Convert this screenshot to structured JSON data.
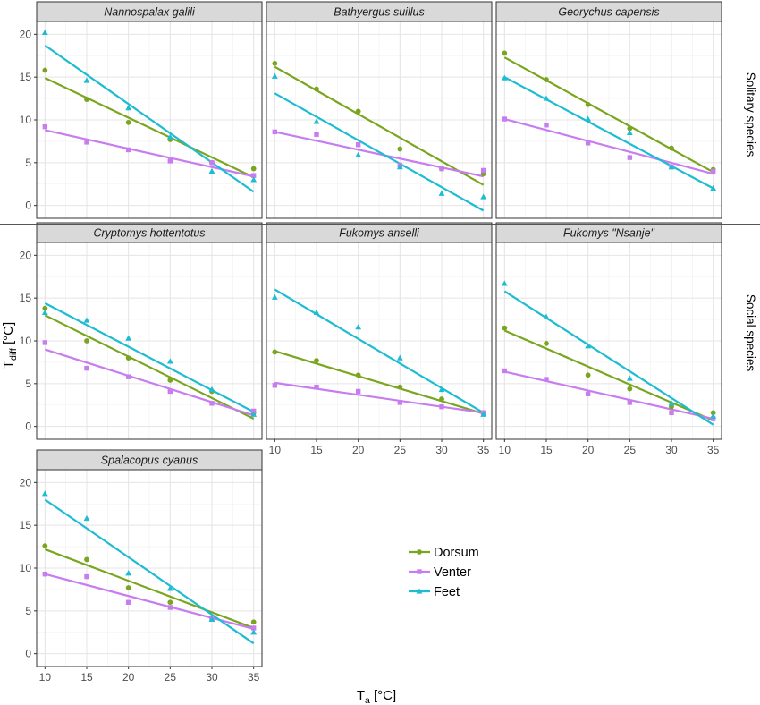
{
  "figure": {
    "x_title": "T",
    "x_title_sub": "a",
    "x_title_unit": " [°C]",
    "y_title": "T",
    "y_title_sub": "diff",
    "y_title_unit": " [°C]",
    "row_labels": [
      "Solitary species",
      "Social species"
    ],
    "legend": [
      {
        "label": "Dorsum",
        "color": "#7aa51e",
        "marker": "circle"
      },
      {
        "label": "Venter",
        "color": "#c77cf0",
        "marker": "square"
      },
      {
        "label": "Feet",
        "color": "#1cbcd2",
        "marker": "triangle"
      }
    ]
  },
  "chart_data": {
    "type": "scatter",
    "facet_layout": "3x3 grid, 7 panels",
    "trend": "linear regression line per series",
    "xlim": [
      9,
      36
    ],
    "ylim": [
      -1.5,
      21.5
    ],
    "x_ticks": [
      10,
      15,
      20,
      25,
      30,
      35
    ],
    "y_ticks": [
      0,
      5,
      10,
      15,
      20
    ],
    "x": [
      10,
      15,
      20,
      25,
      30,
      35
    ],
    "grid": true,
    "legend_position": "bottom-right",
    "panels": [
      {
        "title": "Nannospalax galili",
        "group": "Solitary species",
        "series": [
          {
            "name": "Dorsum",
            "points": [
              15.8,
              12.4,
              9.7,
              7.7,
              5.0,
              4.3
            ],
            "fit": [
              14.9,
              3.3
            ]
          },
          {
            "name": "Venter",
            "points": [
              9.2,
              7.4,
              6.5,
              5.2,
              5.0,
              3.5
            ],
            "fit": [
              8.8,
              3.4
            ]
          },
          {
            "name": "Feet",
            "points": [
              20.2,
              14.6,
              11.4,
              8.0,
              4.0,
              3.0
            ],
            "fit": [
              18.7,
              1.6
            ]
          }
        ]
      },
      {
        "title": "Bathyergus suillus",
        "group": "Solitary species",
        "series": [
          {
            "name": "Dorsum",
            "points": [
              16.6,
              13.6,
              11.0,
              6.6,
              4.3,
              3.7
            ],
            "fit": [
              16.2,
              2.4
            ]
          },
          {
            "name": "Venter",
            "points": [
              8.6,
              8.3,
              7.1,
              4.7,
              4.3,
              4.1
            ],
            "fit": [
              8.6,
              3.4
            ]
          },
          {
            "name": "Feet",
            "points": [
              15.1,
              9.8,
              5.9,
              4.5,
              1.4,
              1.0
            ],
            "fit": [
              13.1,
              -0.6
            ]
          }
        ]
      },
      {
        "title": "Georychus capensis",
        "group": "Solitary species",
        "series": [
          {
            "name": "Dorsum",
            "points": [
              17.8,
              14.7,
              11.8,
              9.0,
              6.7,
              4.2
            ],
            "fit": [
              17.3,
              3.9
            ]
          },
          {
            "name": "Venter",
            "points": [
              10.1,
              9.4,
              7.3,
              5.6,
              4.5,
              4.0
            ],
            "fit": [
              10.1,
              3.7
            ]
          },
          {
            "name": "Feet",
            "points": [
              14.9,
              12.5,
              10.1,
              8.5,
              4.5,
              2.0
            ],
            "fit": [
              15.0,
              2.0
            ]
          }
        ]
      },
      {
        "title": "Cryptomys hottentotus",
        "group": "Social species",
        "series": [
          {
            "name": "Dorsum",
            "points": [
              13.8,
              10.0,
              8.0,
              5.4,
              4.1,
              1.6
            ],
            "fit": [
              13.0,
              0.9
            ]
          },
          {
            "name": "Venter",
            "points": [
              9.8,
              6.8,
              5.8,
              4.1,
              2.7,
              1.8
            ],
            "fit": [
              9.0,
              1.3
            ]
          },
          {
            "name": "Feet",
            "points": [
              13.3,
              12.4,
              10.3,
              7.6,
              4.3,
              1.4
            ],
            "fit": [
              14.4,
              1.7
            ]
          }
        ]
      },
      {
        "title": "Fukomys anselli",
        "group": "Social species",
        "series": [
          {
            "name": "Dorsum",
            "points": [
              8.7,
              7.7,
              6.0,
              4.6,
              3.2,
              1.6
            ],
            "fit": [
              8.8,
              1.5
            ]
          },
          {
            "name": "Venter",
            "points": [
              4.8,
              4.6,
              4.1,
              2.8,
              2.3,
              1.6
            ],
            "fit": [
              5.1,
              1.6
            ]
          },
          {
            "name": "Feet",
            "points": [
              15.1,
              13.3,
              11.6,
              8.0,
              4.3,
              1.4
            ],
            "fit": [
              16.0,
              1.6
            ]
          }
        ]
      },
      {
        "title": "Fukomys \"Nsanje\"",
        "group": "Social species",
        "series": [
          {
            "name": "Dorsum",
            "points": [
              11.5,
              9.7,
              6.0,
              4.4,
              2.3,
              1.6
            ],
            "fit": [
              11.2,
              0.7
            ]
          },
          {
            "name": "Venter",
            "points": [
              6.5,
              5.5,
              3.8,
              2.8,
              1.6,
              0.9
            ],
            "fit": [
              6.4,
              0.9
            ]
          },
          {
            "name": "Feet",
            "points": [
              16.7,
              12.8,
              9.4,
              5.6,
              2.7,
              1.2
            ],
            "fit": [
              15.8,
              0.2
            ]
          }
        ]
      },
      {
        "title": "Spalacopus cyanus",
        "group": "",
        "series": [
          {
            "name": "Dorsum",
            "points": [
              12.6,
              11.0,
              7.7,
              6.0,
              4.1,
              3.7
            ],
            "fit": [
              12.2,
              3.0
            ]
          },
          {
            "name": "Venter",
            "points": [
              9.3,
              9.0,
              6.0,
              5.4,
              4.1,
              3.0
            ],
            "fit": [
              9.3,
              2.9
            ]
          },
          {
            "name": "Feet",
            "points": [
              18.7,
              15.8,
              9.4,
              7.6,
              4.0,
              2.5
            ],
            "fit": [
              18.0,
              1.2
            ]
          }
        ]
      }
    ]
  }
}
